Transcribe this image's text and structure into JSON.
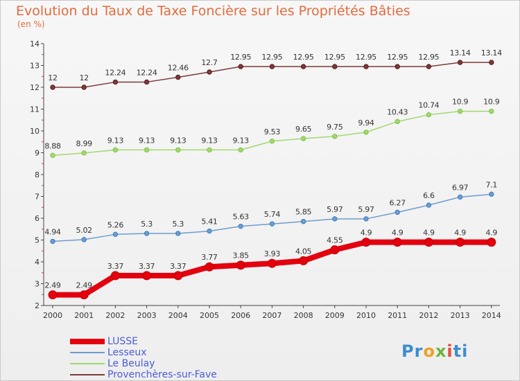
{
  "title": "Evolution du Taux de Taxe Foncière sur les Propriétés Bâties",
  "unit": "(en %)",
  "logo": "Proxiti",
  "chart_data": {
    "type": "line",
    "title": "Evolution du Taux de Taxe Foncière sur les Propriétés Bâties",
    "ylabel": "(en %)",
    "xlabel": "",
    "ylim": [
      2,
      14
    ],
    "yticks": [
      2,
      3,
      4,
      5,
      6,
      7,
      8,
      9,
      10,
      11,
      12,
      13,
      14
    ],
    "x": [
      2000,
      2001,
      2002,
      2003,
      2004,
      2005,
      2006,
      2007,
      2008,
      2009,
      2010,
      2011,
      2012,
      2013,
      2014
    ],
    "legend_position": "bottom-left",
    "grid": false,
    "series": [
      {
        "name": "LUSSE",
        "color": "#e3000f",
        "marker": "#c00000",
        "width": 8,
        "values": [
          2.49,
          2.49,
          3.37,
          3.37,
          3.37,
          3.77,
          3.85,
          3.93,
          4.05,
          4.55,
          4.9,
          4.9,
          4.9,
          4.9,
          4.9
        ],
        "labels": [
          "2.49",
          "2.49",
          "3.37",
          "3.37",
          "3.37",
          "3.77",
          "3.85",
          "3.93",
          "4.05",
          "4.55",
          "4.9",
          "4.9",
          "4.9",
          "4.9",
          "4.9"
        ]
      },
      {
        "name": "Lesseux",
        "color": "#6e9ccd",
        "marker": "#3c7fc4",
        "width": 1.5,
        "values": [
          4.94,
          5.02,
          5.26,
          5.3,
          5.3,
          5.41,
          5.63,
          5.74,
          5.85,
          5.97,
          5.97,
          6.27,
          6.6,
          6.97,
          7.1
        ],
        "labels": [
          "4.94",
          "5.02",
          "5.26",
          "5.3",
          "5.3",
          "5.41",
          "5.63",
          "5.74",
          "5.85",
          "5.97",
          "5.97",
          "6.27",
          "6.6",
          "6.97",
          "7.1"
        ]
      },
      {
        "name": "Le Beulay",
        "color": "#a2d86e",
        "marker": "#7ec34a",
        "width": 1.5,
        "values": [
          8.88,
          8.99,
          9.13,
          9.13,
          9.13,
          9.13,
          9.13,
          9.53,
          9.65,
          9.75,
          9.94,
          10.43,
          10.74,
          10.9,
          10.9
        ],
        "labels": [
          "8.88",
          "8.99",
          "9.13",
          "9.13",
          "9.13",
          "9.13",
          "9.13",
          "9.53",
          "9.65",
          "9.75",
          "9.94",
          "10.43",
          "10.74",
          "10.9",
          "10.9"
        ]
      },
      {
        "name": "Provenchères-sur-Fave",
        "color": "#7b3a3a",
        "marker": "#5a1a1a",
        "width": 1.5,
        "values": [
          12,
          12,
          12.24,
          12.24,
          12.46,
          12.7,
          12.95,
          12.95,
          12.95,
          12.95,
          12.95,
          12.95,
          12.95,
          13.14,
          13.14
        ],
        "labels": [
          "12",
          "12",
          "12.24",
          "12.24",
          "12.46",
          "12.7",
          "12.95",
          "12.95",
          "12.95",
          "12.95",
          "12.95",
          "12.95",
          "12.95",
          "13.14",
          "13.14"
        ]
      }
    ]
  }
}
